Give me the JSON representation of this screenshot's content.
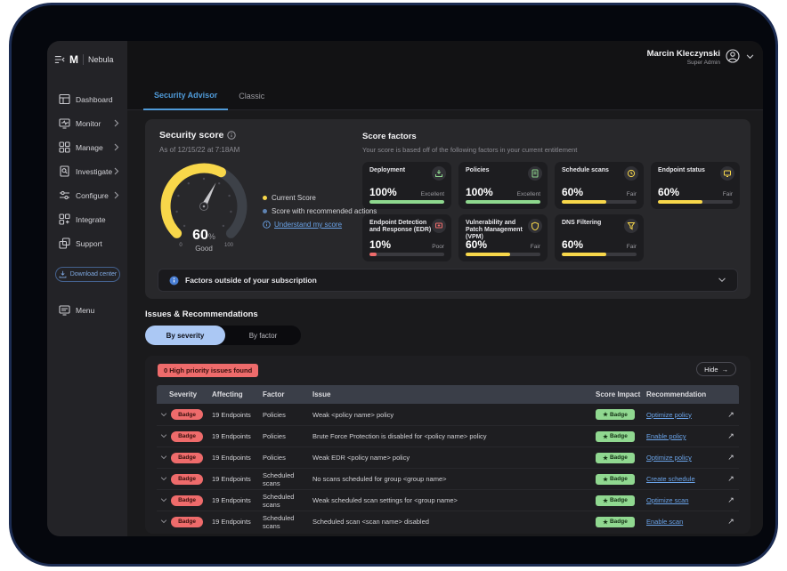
{
  "brand": {
    "product": "Nebula",
    "logo_letter": "M"
  },
  "user": {
    "name": "Marcin Kleczynski",
    "role": "Super Admin"
  },
  "sidebar": {
    "items": [
      {
        "label": "Dashboard"
      },
      {
        "label": "Monitor"
      },
      {
        "label": "Manage"
      },
      {
        "label": "Investigate"
      },
      {
        "label": "Configure"
      },
      {
        "label": "Integrate"
      },
      {
        "label": "Support"
      }
    ],
    "download_center": "Download center",
    "menu": "Menu"
  },
  "tabs": {
    "security_advisor": "Security Advisor",
    "classic": "Classic"
  },
  "security_score": {
    "title": "Security score",
    "as_of": "As of 12/15/22 at 7:18AM",
    "value": "60",
    "unit": "%",
    "rating": "Good",
    "scale_min": "0",
    "scale_max": "100",
    "legend_current": "Current Score",
    "legend_recommended": "Score with recommended actions",
    "understand_link": "Understand my score",
    "colors": {
      "current": "#f8d74a",
      "recommended": "#5f83b2",
      "track": "#3d4148"
    }
  },
  "score_factors": {
    "title": "Score factors",
    "subtitle": "Your score is based off of the following factors in your current entitlement",
    "cards": [
      {
        "title": "Deployment",
        "value": "100%",
        "rating": "Excellent",
        "pct": 100,
        "color": "#8ed88e"
      },
      {
        "title": "Policies",
        "value": "100%",
        "rating": "Excellent",
        "pct": 100,
        "color": "#8ed88e"
      },
      {
        "title": "Schedule scans",
        "value": "60%",
        "rating": "Fair",
        "pct": 60,
        "color": "#f8d74a"
      },
      {
        "title": "Endpoint status",
        "value": "60%",
        "rating": "Fair",
        "pct": 60,
        "color": "#f8d74a"
      },
      {
        "title": "Endpoint Detection and Response (EDR)",
        "value": "10%",
        "rating": "Poor",
        "pct": 10,
        "color": "#ee6b6b"
      },
      {
        "title": "Vulnerability and Patch Management (VPM)",
        "value": "60%",
        "rating": "Fair",
        "pct": 60,
        "color": "#f8d74a"
      },
      {
        "title": "DNS Filtering",
        "value": "60%",
        "rating": "Fair",
        "pct": 60,
        "color": "#f8d74a"
      }
    ]
  },
  "factors_outside": {
    "label": "Factors outside of your subscription"
  },
  "issues": {
    "heading": "Issues & Recommendations",
    "filter_severity": "By severity",
    "filter_factor": "By factor",
    "alert": "0 High priority issues found",
    "hide_label": "Hide",
    "columns": {
      "severity": "Severity",
      "affecting": "Affecting",
      "factor": "Factor",
      "issue": "Issue",
      "impact": "Score Impact",
      "recommendation": "Recommendation"
    },
    "severity_badge": "Badge",
    "impact_badge": "Badge",
    "rows": [
      {
        "affecting": "19 Endpoints",
        "factor": "Policies",
        "issue": "Weak <policy name> policy",
        "recommendation": "Optimize policy"
      },
      {
        "affecting": "19 Endpoints",
        "factor": "Policies",
        "issue": "Brute Force Protection is disabled for <policy name> policy",
        "recommendation": "Enable policy"
      },
      {
        "affecting": "19 Endpoints",
        "factor": "Policies",
        "issue": "Weak EDR <policy name> policy",
        "recommendation": "Optimize policy"
      },
      {
        "affecting": "19 Endpoints",
        "factor": "Scheduled scans",
        "issue": "No scans scheduled for group <group name>",
        "recommendation": "Create schedule"
      },
      {
        "affecting": "19 Endpoints",
        "factor": "Scheduled scans",
        "issue": "Weak scheduled scan settings for <group name>",
        "recommendation": "Optimize scan"
      },
      {
        "affecting": "19 Endpoints",
        "factor": "Scheduled scans",
        "issue": "Scheduled scan <scan name> disabled",
        "recommendation": "Enable scan"
      }
    ]
  }
}
